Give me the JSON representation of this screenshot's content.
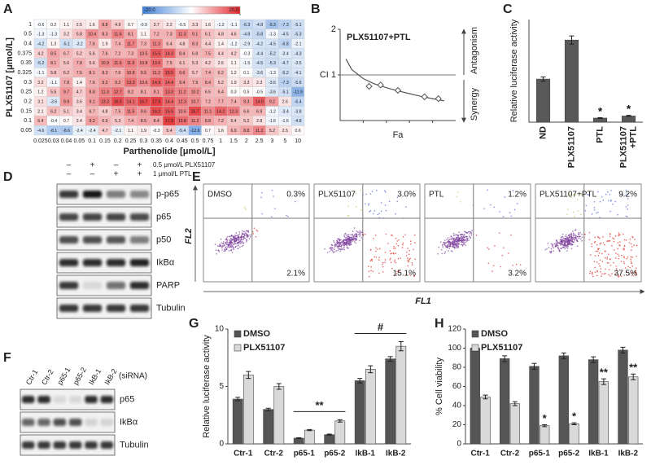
{
  "panel_labels": [
    "A",
    "B",
    "C",
    "D",
    "E",
    "F",
    "G",
    "H"
  ],
  "chart_data": [
    {
      "type": "heatmap",
      "x_label": "Parthenolide [μmol/L]",
      "y_label": "PLX51107 [μmol/L]",
      "x_categories": [
        "0.025",
        "0.03",
        "0.04",
        "0.05",
        "0.1",
        "0.15",
        "0.2",
        "0.25",
        "0.3",
        "0.35",
        "0.4",
        "0.45",
        "0.5",
        "0.75",
        "1",
        "1.5",
        "2",
        "2.5",
        "3",
        "5",
        "10"
      ],
      "y_categories": [
        "1",
        "0.5",
        "0.4",
        "0.375",
        "0.35",
        "0.325",
        "0.3",
        "0.25",
        "0.2",
        "0.15",
        "0.1",
        "0.05"
      ],
      "values": [
        [
          -0.6,
          0.2,
          1.1,
          2.5,
          1.6,
          8.8,
          4.9,
          0.7,
          -0.9,
          3.7,
          2.2,
          -0.5,
          3.3,
          1.6,
          -1.2,
          -1.1,
          -6.3,
          -4.8,
          -9.3,
          -7.3,
          -5.1
        ],
        [
          -1.3,
          -1.3,
          3.2,
          5.8,
          10.4,
          8.3,
          11.6,
          8.1,
          1.1,
          7.2,
          7.3,
          11.3,
          9.1,
          6.1,
          4.8,
          4.6,
          -4.8,
          -5.8,
          -1.3,
          -4.5,
          -5.3
        ],
        [
          -4.2,
          1.3,
          -5.1,
          -3.2,
          7.6,
          1.9,
          7.4,
          11.7,
          7.3,
          11.3,
          6.4,
          4.8,
          8.3,
          4.4,
          1.4,
          -1.2,
          -2.9,
          -4.2,
          -4.5,
          -6.8,
          -2.1
        ],
        [
          4.2,
          8.5,
          6.7,
          5.2,
          5.6,
          7.6,
          7.2,
          7.3,
          10.5,
          15.5,
          14.3,
          8.4,
          6.8,
          7.5,
          4.4,
          4.2,
          -0.3,
          -4.4,
          -5.2,
          -3.4,
          -4.3
        ],
        [
          -5.2,
          8.1,
          5.6,
          7.8,
          5.6,
          10.9,
          11.6,
          11.9,
          10.8,
          13.6,
          7.5,
          6.1,
          5.3,
          4.2,
          2.6,
          1.1,
          -1.5,
          -4.5,
          -5.3,
          -4.7,
          -3.5
        ],
        [
          -1.1,
          5.8,
          6.2,
          7.5,
          8.1,
          8.3,
          7.6,
          10.8,
          9.5,
          11.2,
          15.5,
          9.6,
          5.7,
          7.4,
          6.2,
          1.2,
          0.1,
          -3.6,
          -1.3,
          -5.2,
          -4.1
        ],
        [
          3.2,
          -1.1,
          7.8,
          1.4,
          7.6,
          9.2,
          9.2,
          13.3,
          10.6,
          14.9,
          14.4,
          9.4,
          7.9,
          8.4,
          5.2,
          1.9,
          3.3,
          2.3,
          -3.6,
          -7.3,
          -5.6
        ],
        [
          1.2,
          5.5,
          9.7,
          4.7,
          8.8,
          11.3,
          12.7,
          8.2,
          8.1,
          9.1,
          13.3,
          11.2,
          10.2,
          6.5,
          6.4,
          0.3,
          0.5,
          -0.5,
          -3.6,
          -5.1,
          -11.9
        ],
        [
          3.1,
          -3.6,
          9.9,
          3.6,
          9.1,
          13.3,
          16.5,
          14.1,
          16.7,
          17.5,
          14.4,
          12.3,
          10.7,
          7.2,
          7.7,
          7.4,
          9.3,
          14.9,
          9.2,
          2.6,
          -6.4
        ],
        [
          2.1,
          6.2,
          5.1,
          3.4,
          6.7,
          4.8,
          7.5,
          11.5,
          9.6,
          16.2,
          15.5,
          10.6,
          16.7,
          11.1,
          14.2,
          12.3,
          6.6,
          6.9,
          -1.2,
          -3.4,
          -3.8
        ],
        [
          6.4,
          -0.4,
          0.7,
          2.4,
          9.2,
          6.9,
          5.3,
          7.4,
          8.5,
          8.4,
          17.9,
          13.8,
          11.2,
          8.8,
          7.2,
          5.4,
          5.2,
          2.8,
          -1.6,
          -1.6,
          -4.8
        ],
        [
          -4.6,
          -8.1,
          -8.6,
          -2.4,
          -2.4,
          4.7,
          -2.1,
          1.1,
          1.9,
          -0.3,
          5.4,
          -5.4,
          -12.6,
          0.7,
          1.6,
          6.9,
          8.8,
          11.2,
          5.2,
          2.5,
          0.6
        ]
      ],
      "zlim": [
        -20,
        20
      ],
      "zticks": [
        {
          "value": -20,
          "label": "-20.0"
        },
        {
          "value": 20,
          "label": "20.0"
        }
      ],
      "colors": {
        "low": "#3d7fd9",
        "mid": "#ffffff",
        "high": "#e3262b"
      }
    },
    {
      "type": "scatter",
      "title": "PLX51107+PTL",
      "x_label": "Fa",
      "annotations": [
        "Antagonism",
        "Synergy"
      ],
      "x": [
        0.25,
        0.35,
        0.5,
        0.73,
        0.85
      ],
      "values": [
        0.75,
        0.78,
        0.66,
        0.52,
        0.48
      ],
      "fit_x": [
        0.05,
        0.1,
        0.2,
        0.3,
        0.4,
        0.5,
        0.6,
        0.7,
        0.8,
        0.9
      ],
      "fit_values": [
        1.35,
        1.12,
        0.92,
        0.8,
        0.72,
        0.65,
        0.59,
        0.53,
        0.48,
        0.43
      ],
      "hline": 1,
      "xlim": [
        0,
        1
      ],
      "ylim": [
        0,
        2
      ],
      "yticks": [
        {
          "value": 1,
          "label": "CI 1"
        },
        2
      ],
      "color": "#555555"
    },
    {
      "type": "bar",
      "y_label": "Relative luciferase activity",
      "categories": [
        "ND",
        "PLX51107",
        "PTL",
        "PLX51107\n+PTL"
      ],
      "values": [
        2.1,
        4.0,
        0.2,
        0.3
      ],
      "errors": [
        0.1,
        0.2,
        0.02,
        0.03
      ],
      "significance": [
        null,
        null,
        "*",
        "*"
      ],
      "color": "#595959",
      "ylim": [
        0,
        5
      ]
    },
    {
      "type": "bar",
      "y_label": "Relative luciferase activity",
      "categories": [
        "Ctr-1",
        "Ctr-2",
        "p65-1",
        "p65-2",
        "IkB-1",
        "IkB-2"
      ],
      "series": [
        {
          "name": "DMSO",
          "color": "#555555",
          "values": [
            3.9,
            3.0,
            0.5,
            0.8,
            5.5,
            7.4
          ],
          "errors": [
            0.15,
            0.1,
            0.03,
            0.05,
            0.2,
            0.2
          ]
        },
        {
          "name": "PLX51107",
          "color": "#d9d9d9",
          "values": [
            6.0,
            5.0,
            1.2,
            2.0,
            6.5,
            8.5
          ],
          "errors": [
            0.3,
            0.25,
            0.05,
            0.1,
            0.3,
            0.4
          ]
        }
      ],
      "brackets": [
        {
          "from": "p65-1",
          "to": "p65-2",
          "label": "**"
        },
        {
          "from": "IkB-1",
          "to": "IkB-2",
          "label": "#"
        }
      ],
      "ylim": [
        0,
        10
      ],
      "yticks": [
        0,
        5,
        10
      ]
    },
    {
      "type": "bar",
      "y_label": "% Cell viability",
      "categories": [
        "Ctr-1",
        "Ctr-2",
        "p65-1",
        "p65-2",
        "IkB-1",
        "IkB-2"
      ],
      "series": [
        {
          "name": "DMSO",
          "color": "#555555",
          "values": [
            100,
            89,
            81,
            92,
            88,
            98
          ],
          "errors": [
            3,
            3,
            3,
            3,
            3,
            3
          ]
        },
        {
          "name": "PLX51107",
          "color": "#d9d9d9",
          "values": [
            49,
            42,
            19,
            21,
            65,
            70
          ],
          "errors": [
            2,
            2,
            1,
            1,
            3,
            3
          ],
          "significance": [
            null,
            null,
            "*",
            "*",
            "**",
            "**"
          ]
        }
      ],
      "ylim": [
        0,
        120
      ],
      "yticks": [
        0,
        20,
        40,
        60,
        80,
        100,
        120
      ]
    }
  ],
  "western_blot_d": {
    "treatments": [
      {
        "signs": [
          "–",
          "+",
          "–",
          "+"
        ],
        "label": "0.5 μmol/L PLX51107"
      },
      {
        "signs": [
          "–",
          "–",
          "+",
          "+"
        ],
        "label": "1 μmol/L PTL"
      }
    ],
    "proteins": [
      "p-p65",
      "p65",
      "p50",
      "IkBα",
      "PARP",
      "Tubulin"
    ]
  },
  "flow_cytometry_e": {
    "y_label": "FL2",
    "x_label": "FL1",
    "panels": [
      {
        "label": "DMSO",
        "upper_right": "0.3%",
        "lower_right": "2.1%"
      },
      {
        "label": "PLX51107",
        "upper_right": "3.0%",
        "lower_right": "15.1%"
      },
      {
        "label": "PTL",
        "upper_right": "1.2%",
        "lower_right": "3.2%"
      },
      {
        "label": "PLX51107+PTL",
        "upper_right": "9.2%",
        "lower_right": "37.5%"
      }
    ]
  },
  "western_blot_f": {
    "lanes": [
      "Ctr-1",
      "Ctr-2",
      "p65-1",
      "p65-2",
      "IkB-1",
      "IkB-2"
    ],
    "lanes_note": "(siRNA)",
    "proteins": [
      "p65",
      "IkBα",
      "Tubulin"
    ]
  }
}
